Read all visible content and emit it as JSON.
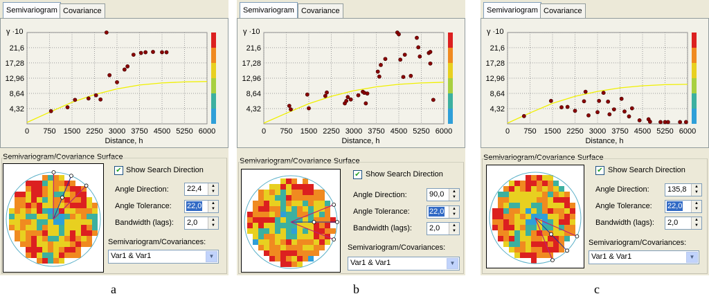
{
  "panels": [
    {
      "id": "a",
      "tabs": [
        "Semivariogram",
        "Covariance"
      ],
      "chart_data": {
        "type": "scatter",
        "ylabel": "γ ·10",
        "xlabel": "Distance, h",
        "y_ticks": [
          "4,32",
          "8,64",
          "12,96",
          "17,28",
          "21,6"
        ],
        "x_ticks": [
          "0",
          "750",
          "1500",
          "2250",
          "3000",
          "3750",
          "4500",
          "5250",
          "6000"
        ],
        "ylim": [
          0,
          25.9
        ],
        "xlim": [
          0,
          6000
        ],
        "grid": true,
        "points": [
          [
            800,
            3.6
          ],
          [
            1350,
            4.7
          ],
          [
            1600,
            6.8
          ],
          [
            2050,
            7.2
          ],
          [
            2300,
            8.1
          ],
          [
            2450,
            6.9
          ],
          [
            2650,
            25.9
          ],
          [
            2750,
            13.8
          ],
          [
            3000,
            11.8
          ],
          [
            3250,
            15.4
          ],
          [
            3350,
            16.3
          ],
          [
            3550,
            19.6
          ],
          [
            3800,
            20.1
          ],
          [
            3950,
            20.3
          ],
          [
            4200,
            20.4
          ],
          [
            4500,
            20.3
          ],
          [
            4650,
            20.3
          ]
        ],
        "curve": [
          [
            0,
            0.4
          ],
          [
            750,
            3.3
          ],
          [
            1500,
            6.1
          ],
          [
            2250,
            8.3
          ],
          [
            3000,
            9.9
          ],
          [
            3750,
            11.0
          ],
          [
            4500,
            11.6
          ],
          [
            5250,
            11.9
          ],
          [
            6000,
            12.0
          ]
        ]
      },
      "surface_title": "Semivariogram/Covariance Surface",
      "show_search_direction": "Show Search Direction",
      "angle_direction_label": "Angle Direction:",
      "angle_direction": "22,4",
      "angle_tolerance_label": "Angle Tolerance:",
      "angle_tolerance": "22,0",
      "bandwidth_label": "Bandwidth (lags):",
      "bandwidth": "2,0",
      "combo_label": "Semivariogram/Covariances:",
      "combo_value": "Var1 & Var1",
      "caption": "a"
    },
    {
      "id": "b",
      "tabs": [
        "Semivariogram",
        "Covariance"
      ],
      "chart_data": {
        "type": "scatter",
        "ylabel": "γ ·10",
        "xlabel": "Distance, h",
        "y_ticks": [
          "4,32",
          "8,64",
          "12,96",
          "17,28",
          "21,6"
        ],
        "x_ticks": [
          "0",
          "750",
          "1500",
          "2250",
          "3000",
          "3750",
          "4500",
          "5250",
          "6000"
        ],
        "ylim": [
          0,
          25.9
        ],
        "xlim": [
          0,
          6000
        ],
        "grid": true,
        "points": [
          [
            850,
            5.1
          ],
          [
            900,
            4.1
          ],
          [
            1450,
            8.3
          ],
          [
            1500,
            4.4
          ],
          [
            2050,
            7.9
          ],
          [
            2100,
            8.9
          ],
          [
            2700,
            5.8
          ],
          [
            2750,
            6.5
          ],
          [
            2800,
            7.6
          ],
          [
            2900,
            6.9
          ],
          [
            3150,
            8.1
          ],
          [
            3300,
            9.1
          ],
          [
            3350,
            8.8
          ],
          [
            3400,
            5.8
          ],
          [
            3450,
            8.6
          ],
          [
            3800,
            14.8
          ],
          [
            3850,
            13.4
          ],
          [
            3900,
            16.7
          ],
          [
            4050,
            18.4
          ],
          [
            4450,
            26.1
          ],
          [
            4500,
            25.4
          ],
          [
            4550,
            18.2
          ],
          [
            4650,
            13.3
          ],
          [
            4700,
            19.6
          ],
          [
            4900,
            13.6
          ],
          [
            5100,
            24.4
          ],
          [
            5150,
            21.7
          ],
          [
            5200,
            19.1
          ],
          [
            5500,
            20.1
          ],
          [
            5550,
            20.4
          ],
          [
            5550,
            17.1
          ],
          [
            5650,
            6.8
          ]
        ],
        "curve": [
          [
            0,
            0.2
          ],
          [
            750,
            3.0
          ],
          [
            1500,
            5.7
          ],
          [
            2250,
            7.8
          ],
          [
            3000,
            9.4
          ],
          [
            3750,
            10.5
          ],
          [
            4500,
            11.2
          ],
          [
            5250,
            11.6
          ],
          [
            6000,
            11.8
          ]
        ]
      },
      "surface_title": "Semivariogram/Covariance Surface",
      "show_search_direction": "Show Search Direction",
      "angle_direction_label": "Angle Direction:",
      "angle_direction": "90,0",
      "angle_tolerance_label": "Angle Tolerance:",
      "angle_tolerance": "22,0",
      "bandwidth_label": "Bandwidth (lags):",
      "bandwidth": "2,0",
      "combo_label": "Semivariogram/Covariances:",
      "combo_value": "Var1 & Var1",
      "caption": "b"
    },
    {
      "id": "c",
      "tabs": [
        "Semivariogram",
        "Covariance"
      ],
      "chart_data": {
        "type": "scatter",
        "ylabel": "γ ·10",
        "xlabel": "Distance, h",
        "y_ticks": [
          "4,32",
          "8,64",
          "12,96",
          "17,28",
          "21,6"
        ],
        "x_ticks": [
          "0",
          "750",
          "1500",
          "2250",
          "3000",
          "3750",
          "4500",
          "5250",
          "6000"
        ],
        "ylim": [
          0,
          25.9
        ],
        "xlim": [
          0,
          6000
        ],
        "grid": true,
        "points": [
          [
            550,
            2.2
          ],
          [
            1450,
            6.5
          ],
          [
            1800,
            4.7
          ],
          [
            2000,
            4.8
          ],
          [
            2250,
            3.7
          ],
          [
            2550,
            6.4
          ],
          [
            2600,
            9.1
          ],
          [
            2700,
            2.4
          ],
          [
            3000,
            3.3
          ],
          [
            3050,
            6.5
          ],
          [
            3200,
            8.8
          ],
          [
            3350,
            6.3
          ],
          [
            3400,
            2.7
          ],
          [
            3550,
            4.1
          ],
          [
            3800,
            7.1
          ],
          [
            3900,
            3.5
          ],
          [
            4050,
            2.1
          ],
          [
            4150,
            4.4
          ],
          [
            4400,
            1.0
          ],
          [
            4700,
            1.3
          ],
          [
            4750,
            0.6
          ],
          [
            5100,
            0.5
          ],
          [
            5250,
            0.5
          ],
          [
            5350,
            0.5
          ],
          [
            5750,
            0.5
          ],
          [
            5950,
            0.5
          ]
        ],
        "curve": [
          [
            0,
            0.2
          ],
          [
            750,
            3.1
          ],
          [
            1500,
            5.8
          ],
          [
            2250,
            7.8
          ],
          [
            3000,
            9.2
          ],
          [
            3750,
            10.2
          ],
          [
            4500,
            10.8
          ],
          [
            5250,
            11.1
          ],
          [
            6000,
            11.2
          ]
        ]
      },
      "surface_title": "Semivariogram/Covariance Surface",
      "show_search_direction": "Show Search Direction",
      "angle_direction_label": "Angle Direction:",
      "angle_direction": "135,8",
      "angle_tolerance_label": "Angle Tolerance:",
      "angle_tolerance": "22,0",
      "bandwidth_label": "Bandwidth (lags):",
      "bandwidth": "2,0",
      "combo_label": "Semivariogram/Covariances:",
      "combo_value": "Var1 & Var1",
      "caption": "c"
    }
  ],
  "colors": {
    "point_fill": "#8b0000",
    "curve": "#f0f000",
    "grid": "#9a9a9a",
    "selection": "#316ac5",
    "surface_blue": "#2f9fd8",
    "surface_teal": "#3cb0a0",
    "surface_yellow": "#e8d020",
    "surface_orange": "#f08a20",
    "surface_red": "#dc2020",
    "search_line": "#c02070",
    "search_axis": "#2030a0"
  },
  "icons": {
    "spin_up": "▲",
    "spin_down": "▼",
    "combo_arrow": "▼",
    "check": "✔"
  }
}
